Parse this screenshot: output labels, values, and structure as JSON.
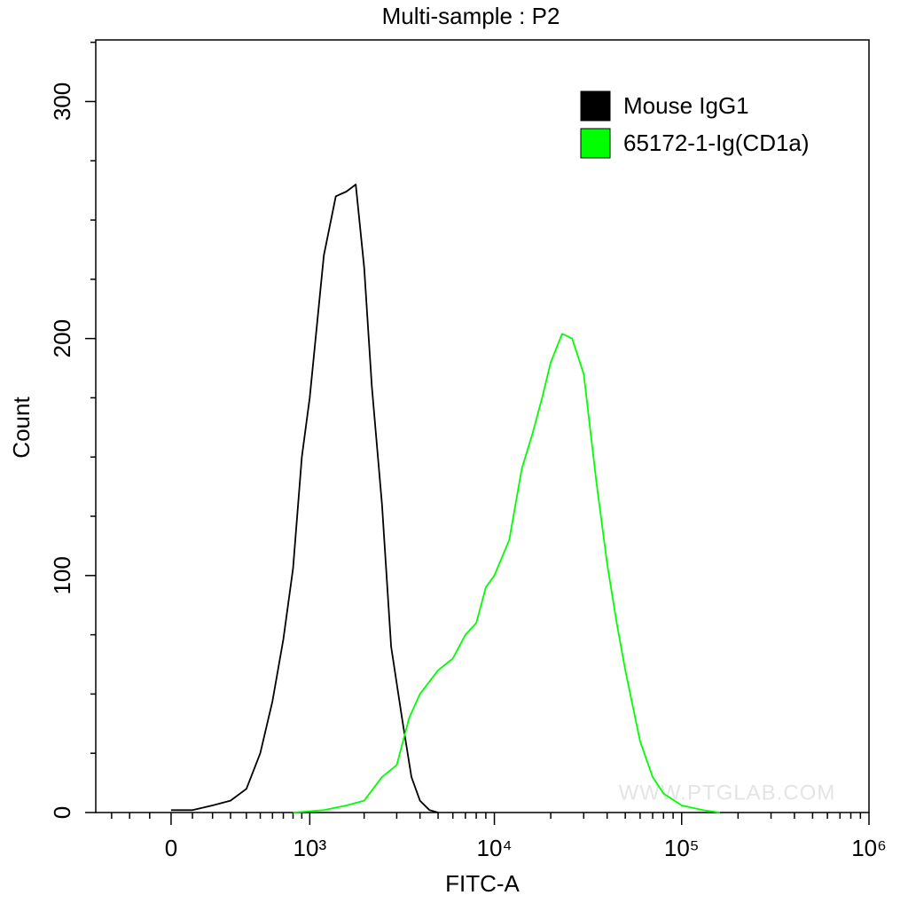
{
  "chart_data": {
    "type": "line",
    "title": "Multi-sample : P2",
    "x_label": "FITC-A",
    "y_label": "Count",
    "watermark": "WWW.PTGLAB.COM",
    "xscale": "biexponential",
    "xlim": [
      -400,
      1000000
    ],
    "ylim": [
      0,
      326
    ],
    "xticks": [
      0,
      {
        "value": 1000,
        "label": "10³"
      },
      {
        "value": 10000,
        "label": "10⁴"
      },
      {
        "value": 100000,
        "label": "10⁵"
      },
      {
        "value": 1000000,
        "label": "10⁶"
      }
    ],
    "xminorticks": [
      -300,
      -200,
      -100,
      100,
      200,
      300,
      400,
      500,
      600,
      700,
      800,
      900,
      2000,
      3000,
      4000,
      5000,
      6000,
      7000,
      8000,
      9000,
      20000,
      30000,
      40000,
      50000,
      60000,
      70000,
      80000,
      90000,
      200000,
      300000,
      400000,
      500000,
      600000,
      700000,
      800000,
      900000
    ],
    "yticks": [
      0,
      100,
      200,
      300
    ],
    "yminorticks": [
      25,
      50,
      75,
      125,
      150,
      175,
      225,
      250,
      275,
      325
    ],
    "legend": "upper right",
    "series": [
      {
        "name": "Mouse IgG1",
        "color": "#000000",
        "x": [
          0,
          100,
          200,
          300,
          400,
          500,
          600,
          700,
          800,
          900,
          1000,
          1200,
          1400,
          1600,
          1800,
          2000,
          2200,
          2500,
          2800,
          3200,
          3600,
          4000,
          4500,
          5000
        ],
        "values": [
          1,
          1,
          3,
          5,
          10,
          25,
          47,
          73,
          103,
          150,
          175,
          235,
          260,
          262,
          265,
          230,
          180,
          130,
          70,
          40,
          15,
          5,
          1,
          0
        ]
      },
      {
        "name": "65172-1-Ig(CD1a)",
        "color": "#00ff00",
        "x": [
          800,
          1200,
          1600,
          2000,
          2500,
          3000,
          3500,
          4000,
          5000,
          6000,
          7000,
          8000,
          9000,
          10000,
          12000,
          14000,
          16000,
          18000,
          20000,
          23000,
          26000,
          30000,
          35000,
          40000,
          45000,
          50000,
          60000,
          70000,
          80000,
          100000,
          130000,
          160000
        ],
        "values": [
          0,
          1,
          3,
          5,
          15,
          20,
          40,
          50,
          60,
          65,
          75,
          80,
          95,
          100,
          115,
          145,
          160,
          175,
          190,
          202,
          200,
          185,
          140,
          105,
          80,
          60,
          30,
          15,
          8,
          3,
          1,
          0
        ]
      }
    ]
  }
}
